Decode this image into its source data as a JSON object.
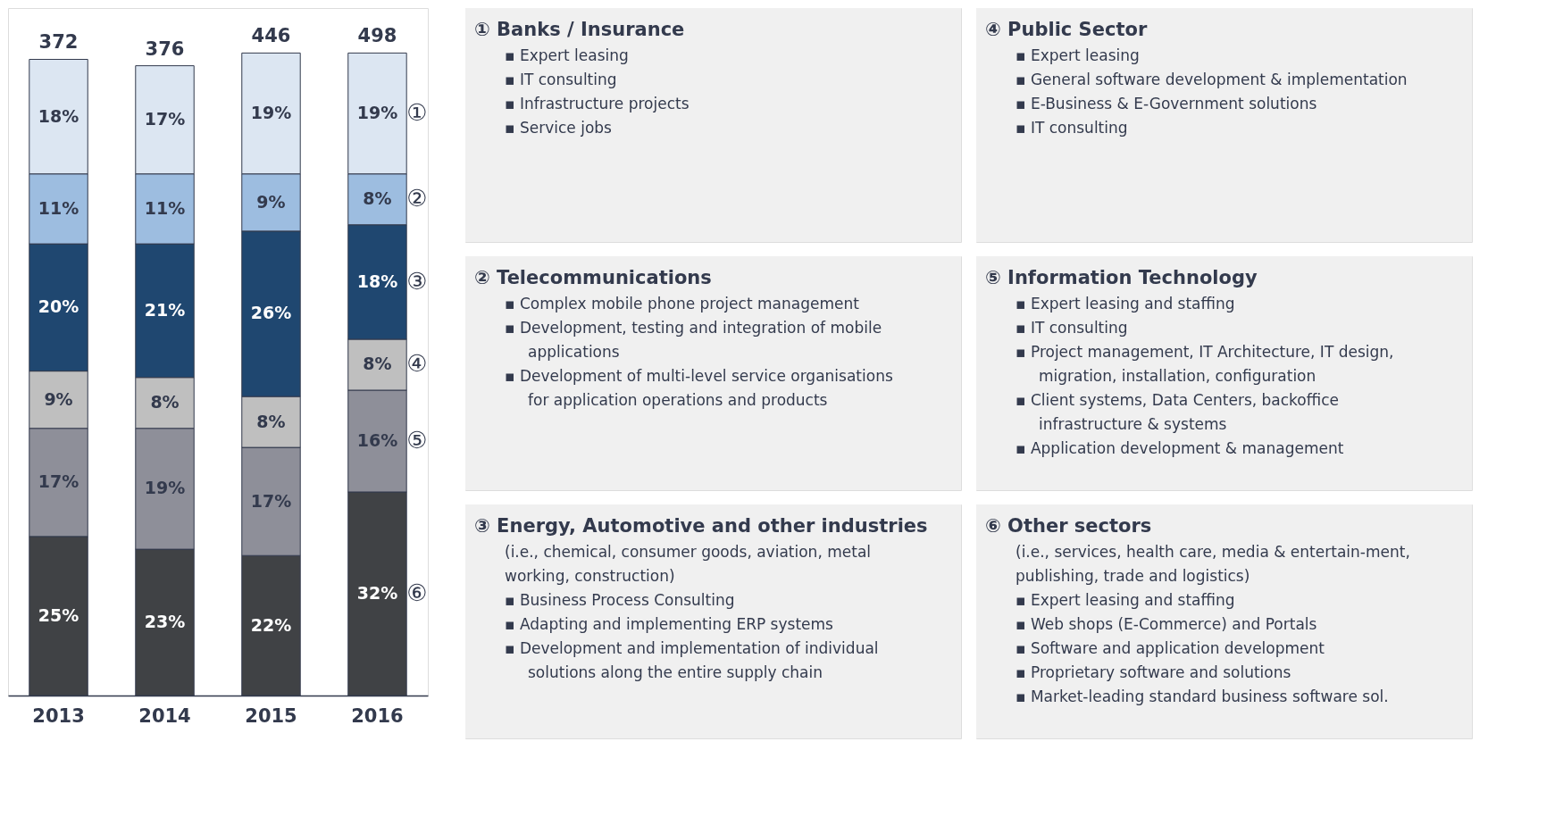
{
  "chart_data": [
    {
      "type": "bar",
      "stacked": true,
      "categories": [
        "2013",
        "2014",
        "2015",
        "2016"
      ],
      "series": [
        {
          "color": "#404245",
          "values": [
            25,
            23,
            22,
            32
          ],
          "value_labels": [
            "25%",
            "23%",
            "22%",
            "32%"
          ]
        },
        {
          "color": "#8e8f99",
          "values": [
            17,
            19,
            17,
            16
          ],
          "value_labels": [
            "17%",
            "19%",
            "17%",
            "16%"
          ]
        },
        {
          "color": "#bfbfbf",
          "values": [
            9,
            8,
            8,
            8
          ],
          "value_labels": [
            "9%",
            "8%",
            "8%",
            "8%"
          ]
        },
        {
          "color": "#1f4770",
          "values": [
            20,
            21,
            26,
            18
          ],
          "value_labels": [
            "20%",
            "21%",
            "26%",
            "18%"
          ]
        },
        {
          "color": "#9dbde0",
          "values": [
            11,
            11,
            9,
            8
          ],
          "value_labels": [
            "11%",
            "11%",
            "9%",
            "8%"
          ]
        },
        {
          "color": "#dce6f2",
          "values": [
            18,
            17,
            19,
            19
          ],
          "value_labels": [
            "18%",
            "17%",
            "19%",
            "19%"
          ]
        }
      ],
      "annotations": [
        {
          "text": "372",
          "x": "2013",
          "y": 100
        },
        {
          "text": "376",
          "x": "2014",
          "y": 99
        },
        {
          "text": "446",
          "x": "2015",
          "y": 101
        },
        {
          "text": "498",
          "x": "2016",
          "y": 101
        },
        "①",
        "②",
        "③",
        "④",
        "⑤",
        "⑥"
      ]
    },
    {
      "type": "other",
      "title": "① Banks / Insurance",
      "annotations": [
        "▪ Expert leasing",
        "▪ IT consulting",
        "▪ Infrastructure projects",
        "▪ Service jobs"
      ]
    },
    {
      "type": "other",
      "title": "④ Public Sector",
      "annotations": [
        "▪ Expert leasing",
        "▪ General software development & implementation",
        "▪ E-Business & E-Government solutions",
        "▪ IT consulting"
      ]
    },
    {
      "type": "other",
      "title": "② Telecommunications",
      "annotations": [
        "▪ Complex mobile phone project management",
        "▪ Development, testing and integration of mobile applications",
        "▪ Development of multi-level service organisations for application operations and products"
      ]
    },
    {
      "type": "other",
      "title": "⑤ Information Technology",
      "annotations": [
        "▪ Expert leasing and staffing",
        "▪ IT consulting",
        "▪ Project management, IT Architecture, IT design, migration, installation, configuration",
        "▪ Client systems, Data Centers, backoffice infrastructure & systems",
        "▪ Application development & management"
      ]
    },
    {
      "type": "other",
      "title": "③ Energy, Automotive and other industries",
      "subtitle": "(i.e., chemical, consumer goods, aviation, metal working, construction)",
      "annotations": [
        "▪ Business Process Consulting",
        "▪ Adapting and implementing ERP systems",
        "▪ Development and implementation of individual solutions along the entire supply chain"
      ]
    },
    {
      "type": "other",
      "title": "⑥ Other sectors",
      "subtitle": "(i.e., services, health care, media & entertain-ment, publishing, trade and logistics)",
      "annotations": [
        "▪ Expert leasing and staffing",
        "▪ Web shops (E-Commerce) and Portals",
        "▪ Software and application development",
        "▪ Proprietary software and solutions",
        "▪ Market-leading standard business software sol."
      ]
    }
  ]
}
